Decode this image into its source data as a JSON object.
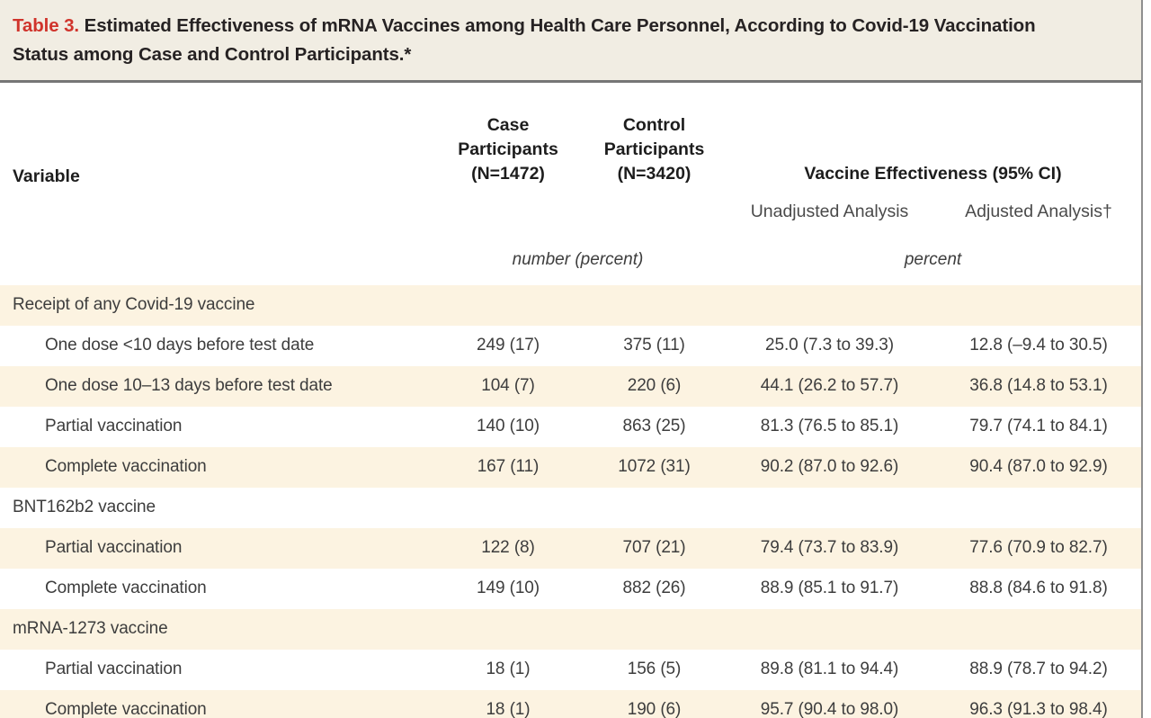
{
  "title": {
    "label": "Table 3.",
    "text": "Estimated Effectiveness of mRNA Vaccines among Health Care Personnel, According to Covid-19 Vaccination Status among Case and Control Participants.*"
  },
  "colors": {
    "accent_red": "#d0342c",
    "shaded_row_bg": "#fcf3e1",
    "title_bg": "#f1ede3",
    "rule_gray": "#767676"
  },
  "table": {
    "header": {
      "variable": "Variable",
      "case_line1": "Case",
      "case_line2": "Participants",
      "case_line3": "(N=1472)",
      "control_line1": "Control",
      "control_line2": "Participants",
      "control_line3": "(N=3420)",
      "effectiveness": "Vaccine Effectiveness (95% CI)",
      "unadjusted": "Unadjusted Analysis",
      "adjusted": "Adjusted Analysis†",
      "units_counts": "number (percent)",
      "units_effectiveness": "percent"
    },
    "rows": [
      {
        "label": "Receipt of any Covid-19 vaccine",
        "group": true,
        "shaded": true,
        "case": "",
        "control": "",
        "unadjusted": "",
        "adjusted": ""
      },
      {
        "label": "One dose <10 days before test date",
        "group": false,
        "shaded": false,
        "case": "249 (17)",
        "control": "375 (11)",
        "unadjusted": "25.0 (7.3 to 39.3)",
        "adjusted": "12.8 (–9.4 to 30.5)"
      },
      {
        "label": "One dose 10–13 days before test date",
        "group": false,
        "shaded": true,
        "case": "104 (7)",
        "control": "220 (6)",
        "unadjusted": "44.1 (26.2 to 57.7)",
        "adjusted": "36.8 (14.8 to 53.1)"
      },
      {
        "label": "Partial vaccination",
        "group": false,
        "shaded": false,
        "case": "140 (10)",
        "control": "863 (25)",
        "unadjusted": "81.3 (76.5 to 85.1)",
        "adjusted": "79.7 (74.1 to 84.1)"
      },
      {
        "label": "Complete vaccination",
        "group": false,
        "shaded": true,
        "case": "167 (11)",
        "control": "1072 (31)",
        "unadjusted": "90.2 (87.0 to 92.6)",
        "adjusted": "90.4 (87.0 to 92.9)"
      },
      {
        "label": "BNT162b2 vaccine",
        "group": true,
        "shaded": false,
        "case": "",
        "control": "",
        "unadjusted": "",
        "adjusted": ""
      },
      {
        "label": "Partial vaccination",
        "group": false,
        "shaded": true,
        "case": "122 (8)",
        "control": "707 (21)",
        "unadjusted": "79.4 (73.7 to 83.9)",
        "adjusted": "77.6 (70.9 to 82.7)"
      },
      {
        "label": "Complete vaccination",
        "group": false,
        "shaded": false,
        "case": "149 (10)",
        "control": "882 (26)",
        "unadjusted": "88.9 (85.1 to 91.7)",
        "adjusted": "88.8 (84.6 to 91.8)"
      },
      {
        "label": "mRNA-1273 vaccine",
        "group": true,
        "shaded": true,
        "case": "",
        "control": "",
        "unadjusted": "",
        "adjusted": ""
      },
      {
        "label": "Partial vaccination",
        "group": false,
        "shaded": false,
        "case": "18 (1)",
        "control": "156 (5)",
        "unadjusted": "89.8 (81.1 to 94.4)",
        "adjusted": "88.9 (78.7 to 94.2)"
      },
      {
        "label": "Complete vaccination",
        "group": false,
        "shaded": true,
        "case": "18 (1)",
        "control": "190 (6)",
        "unadjusted": "95.7 (90.4 to 98.0)",
        "adjusted": "96.3 (91.3 to 98.4)"
      }
    ]
  }
}
